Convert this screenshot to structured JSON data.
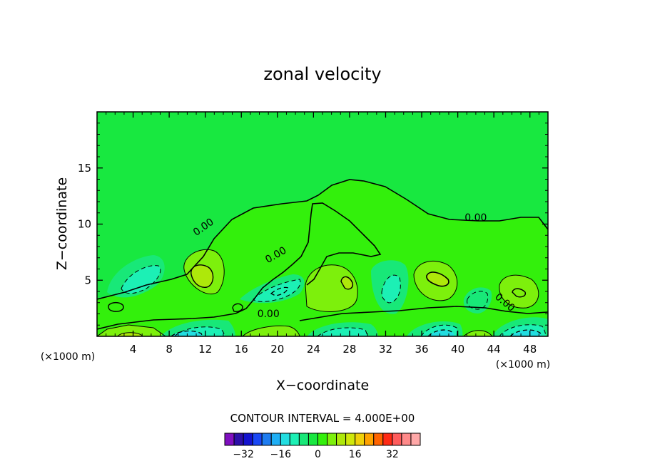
{
  "chart_data": {
    "type": "contour",
    "title": "zonal velocity",
    "xlabel": "X−coordinate",
    "ylabel": "Z−coordinate",
    "x_unit_left": "(×1000 m)",
    "x_unit_right": "(×1000 m)",
    "xlim": [
      0,
      50
    ],
    "ylim": [
      0,
      20
    ],
    "x_ticks": [
      4,
      8,
      12,
      16,
      20,
      24,
      28,
      32,
      36,
      40,
      44,
      48
    ],
    "y_ticks": [
      5,
      10,
      15
    ],
    "contour_interval_label": "CONTOUR INTERVAL = 4.000E+00",
    "contour_labels": [
      {
        "text": "0.00",
        "x": 12,
        "y": 9.5
      },
      {
        "text": "0.00",
        "x": 20,
        "y": 7.0
      },
      {
        "text": "0.00",
        "x": 19,
        "y": 1.7
      },
      {
        "text": "0.00",
        "x": 42,
        "y": 10.3
      },
      {
        "text": "0.00",
        "x": 45,
        "y": 2.8
      }
    ],
    "colorbar": {
      "levels": [
        -36,
        -32,
        -28,
        -24,
        -20,
        -16,
        -12,
        -8,
        -4,
        0,
        4,
        8,
        12,
        16,
        20,
        24,
        28,
        32,
        36
      ],
      "tick_labels": [
        "−32",
        "−16",
        "0",
        "16",
        "32"
      ],
      "tick_values": [
        -32,
        -16,
        0,
        16,
        32
      ],
      "colors": [
        "#7f0fbf",
        "#2c0fa8",
        "#1313cf",
        "#1a48f5",
        "#1e7cf0",
        "#1faff5",
        "#22dde0",
        "#1cf0b5",
        "#18e878",
        "#18e840",
        "#33f00c",
        "#7df00c",
        "#aee80a",
        "#d0e80a",
        "#f0d10a",
        "#ffa300",
        "#ff6400",
        "#ff2a14",
        "#ff5c5c",
        "#ff8a8a",
        "#ffa8a8"
      ]
    },
    "background_value": 0
  }
}
